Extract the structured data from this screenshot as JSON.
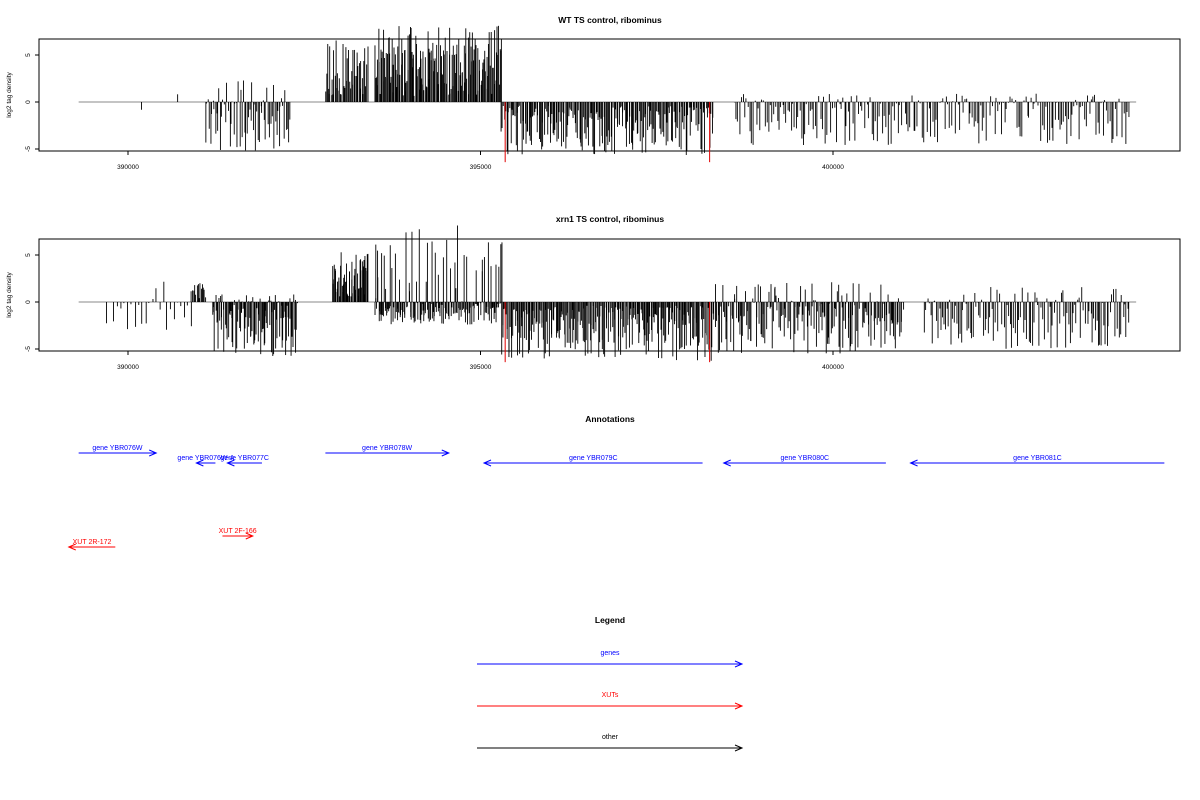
{
  "chart_data": [
    {
      "type": "bar",
      "title": "WT TS control, ribominus",
      "ylabel": "log2 tag density",
      "xlim": [
        388600,
        404700
      ],
      "ylim": [
        -7,
        8.8
      ],
      "x_ticks": [
        390000,
        395000,
        400000
      ],
      "x_tick_labels": [
        "390000",
        "395000",
        "400000"
      ],
      "y_ticks": [
        -5,
        0,
        5
      ],
      "y_tick_labels": [
        "-5",
        "0",
        "5"
      ],
      "baseline_range": [
        389300,
        404300
      ],
      "series": [
        {
          "values_by_region": [
            {
              "x_start": 390200,
              "x_end": 390200,
              "count": 1,
              "min": -1.0,
              "max": -0.8
            },
            {
              "x_start": 390700,
              "x_end": 390700,
              "count": 1,
              "min": 0.6,
              "max": 0.9
            },
            {
              "x_start": 391100,
              "x_end": 392300,
              "count": 70,
              "min": -5.5,
              "max": 2.3
            },
            {
              "x_start": 392800,
              "x_end": 393400,
              "count": 45,
              "min": 0.6,
              "max": 6.8
            },
            {
              "x_start": 393500,
              "x_end": 395300,
              "count": 170,
              "min": 0.6,
              "max": 8.2
            },
            {
              "x_start": 395300,
              "x_end": 398300,
              "count": 210,
              "min": -5.8,
              "max": -0.4
            },
            {
              "x_start": 398600,
              "x_end": 404200,
              "count": 230,
              "min": -4.6,
              "max": 0.9
            }
          ]
        }
      ],
      "red_ticks": [
        {
          "x": 395350,
          "y": -6.4
        },
        {
          "x": 398250,
          "y": -6.4
        }
      ],
      "grid": false
    },
    {
      "type": "bar",
      "title": "xrn1 TS control, ribominus",
      "ylabel": "log2 tag density",
      "xlim": [
        388600,
        404700
      ],
      "ylim": [
        -7,
        8.8
      ],
      "x_ticks": [
        390000,
        395000,
        400000
      ],
      "x_tick_labels": [
        "390000",
        "395000",
        "400000"
      ],
      "y_ticks": [
        -5,
        0,
        5
      ],
      "y_tick_labels": [
        "-5",
        "0",
        "5"
      ],
      "baseline_range": [
        389300,
        404300
      ],
      "series": [
        {
          "values_by_region": [
            {
              "x_start": 389700,
              "x_end": 390900,
              "count": 25,
              "min": -3.0,
              "max": 2.4
            },
            {
              "x_start": 390900,
              "x_end": 391100,
              "count": 14,
              "min": 0.4,
              "max": 2.2
            },
            {
              "x_start": 391200,
              "x_end": 392400,
              "count": 120,
              "min": -5.8,
              "max": 0.8
            },
            {
              "x_start": 392900,
              "x_end": 393400,
              "count": 55,
              "min": 0.6,
              "max": 5.5
            },
            {
              "x_start": 393500,
              "x_end": 395300,
              "count": 190,
              "min": -2.4,
              "max": 8.3
            },
            {
              "x_start": 395300,
              "x_end": 398300,
              "count": 250,
              "min": -6.3,
              "max": -0.4
            },
            {
              "x_start": 398300,
              "x_end": 401000,
              "count": 200,
              "min": -5.5,
              "max": 2.2
            },
            {
              "x_start": 401300,
              "x_end": 404200,
              "count": 140,
              "min": -5.0,
              "max": 1.6
            }
          ]
        }
      ],
      "red_ticks": [
        {
          "x": 395350,
          "y": -6.4
        },
        {
          "x": 398250,
          "y": -6.4
        }
      ],
      "grid": false
    }
  ],
  "annotations": {
    "title": "Annotations",
    "features": [
      {
        "label": "gene YBR076W",
        "type": "gene",
        "color": "#0000ff",
        "start": 389300,
        "end": 390400,
        "strand": "+",
        "row": 0
      },
      {
        "label": "gene YBR076W-A",
        "type": "gene",
        "color": "#0000ff",
        "start": 390970,
        "end": 391240,
        "strand": "-",
        "row": 1
      },
      {
        "label": "gene YBR077C",
        "type": "gene",
        "color": "#0000ff",
        "start": 391410,
        "end": 391900,
        "strand": "-",
        "row": 1
      },
      {
        "label": "gene YBR078W",
        "type": "gene",
        "color": "#0000ff",
        "start": 392800,
        "end": 394550,
        "strand": "+",
        "row": 0
      },
      {
        "label": "gene YBR079C",
        "type": "gene",
        "color": "#0000ff",
        "start": 395050,
        "end": 398150,
        "strand": "-",
        "row": 1
      },
      {
        "label": "gene YBR080C",
        "type": "gene",
        "color": "#0000ff",
        "start": 398450,
        "end": 400750,
        "strand": "-",
        "row": 1
      },
      {
        "label": "gene YBR081C",
        "type": "gene",
        "color": "#0000ff",
        "start": 401100,
        "end": 404700,
        "strand": "-",
        "row": 1
      },
      {
        "label": "XUT 2R-172",
        "type": "xut",
        "color": "#ff0000",
        "start": 389160,
        "end": 389820,
        "strand": "-",
        "row": 4
      },
      {
        "label": "XUT 2F-166",
        "type": "xut",
        "color": "#ff0000",
        "start": 391340,
        "end": 391770,
        "strand": "+",
        "row": 3
      }
    ]
  },
  "legend": {
    "title": "Legend",
    "items": [
      {
        "label": "genes",
        "color": "#0000ff"
      },
      {
        "label": "XUTs",
        "color": "#ff0000"
      },
      {
        "label": "other",
        "color": "#000000"
      }
    ]
  }
}
